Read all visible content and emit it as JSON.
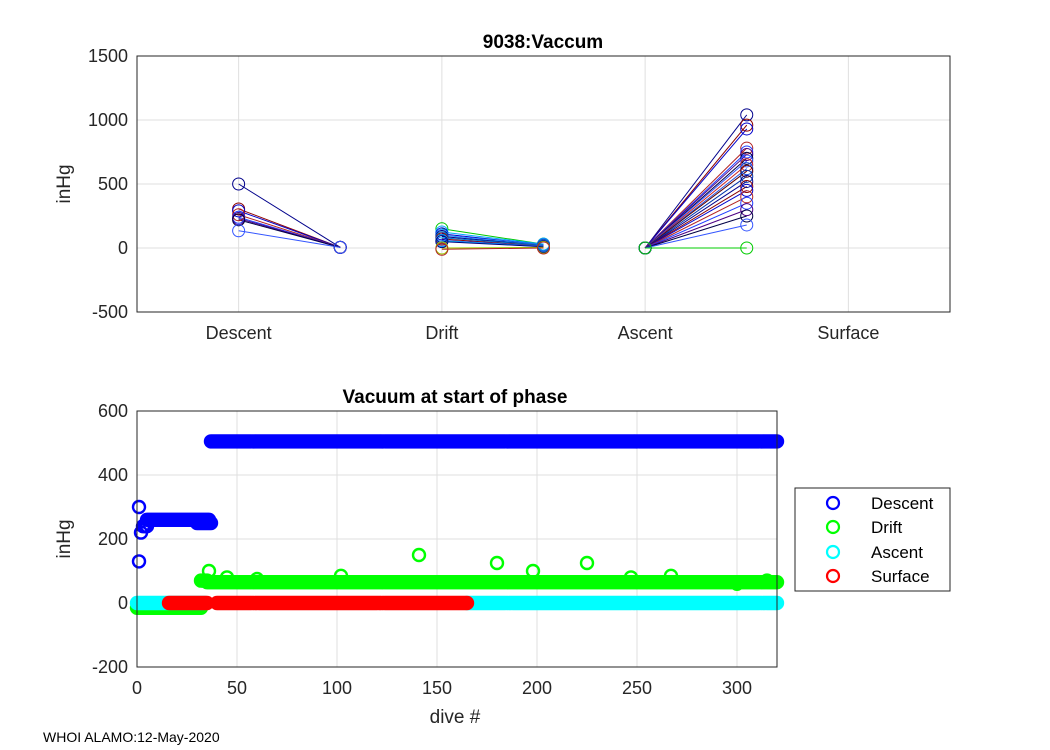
{
  "footer": "WHOI ALAMO:12-May-2020",
  "colors": {
    "descent": "#0000ff",
    "drift": "#00ff00",
    "ascent": "#00ffff",
    "surface": "#ff0000",
    "grid": "#dfdfdf",
    "axis": "#262626"
  },
  "chart_data": [
    {
      "type": "line",
      "title": "9038:Vaccum",
      "xlabel": "",
      "ylabel": "inHg",
      "ylim": [
        -500,
        1500
      ],
      "xlim": [
        -0.5,
        3.5
      ],
      "yticks": [
        "-500",
        "0",
        "500",
        "1000",
        "1500"
      ],
      "xticks": [
        {
          "x": 0,
          "label": "Descent"
        },
        {
          "x": 1,
          "label": "Drift"
        },
        {
          "x": 2,
          "label": "Ascent"
        },
        {
          "x": 3,
          "label": "Surface"
        }
      ],
      "grid": true,
      "phase_segments": [
        {
          "phase": "Descent",
          "x_start": 0,
          "x_end": 0.5,
          "start_values": [
            500,
            305,
            290,
            260,
            240,
            230,
            220,
            135
          ],
          "end_values": [
            5,
            5,
            5,
            5,
            5,
            5,
            5,
            5
          ]
        },
        {
          "phase": "Drift",
          "x_start": 1,
          "x_end": 1.5,
          "start_values": [
            150,
            125,
            110,
            100,
            90,
            80,
            70,
            60,
            55,
            50,
            0,
            -10
          ],
          "end_values": [
            30,
            30,
            25,
            25,
            20,
            20,
            15,
            15,
            10,
            10,
            5,
            0
          ]
        },
        {
          "phase": "Ascent",
          "x_start": 2,
          "x_end": 2.5,
          "start_values": [
            0,
            0,
            0,
            0,
            0,
            0,
            0,
            0,
            0,
            0,
            0,
            0,
            0,
            0,
            0,
            0,
            0,
            0,
            0,
            0
          ],
          "end_values": [
            1040,
            960,
            930,
            780,
            750,
            730,
            700,
            680,
            650,
            620,
            600,
            560,
            520,
            480,
            450,
            400,
            350,
            300,
            250,
            180
          ]
        },
        {
          "phase": "Ascent-flat",
          "x_start": 2,
          "x_end": 2.5,
          "start_values": [
            0
          ],
          "end_values": [
            0
          ]
        }
      ]
    },
    {
      "type": "scatter",
      "title": "Vacuum at start of phase",
      "xlabel": "dive #",
      "ylabel": "inHg",
      "xlim": [
        0,
        320
      ],
      "ylim": [
        -200,
        600
      ],
      "xticks": [
        "0",
        "50",
        "100",
        "150",
        "200",
        "250",
        "300"
      ],
      "yticks": [
        "-200",
        "0",
        "200",
        "400",
        "600"
      ],
      "grid": true,
      "legend_position": "outside-right",
      "series": [
        {
          "name": "Descent",
          "segments": [
            {
              "x_from": 1,
              "x_to": 1,
              "y": 300
            },
            {
              "x_from": 1,
              "x_to": 1,
              "y": 130
            },
            {
              "x_from": 2,
              "x_to": 2,
              "y": 220
            },
            {
              "x_from": 3,
              "x_to": 5,
              "y": 240
            },
            {
              "x_from": 5,
              "x_to": 36,
              "y": 260
            },
            {
              "x_from": 30,
              "x_to": 37,
              "y": 250
            },
            {
              "x_from": 37,
              "x_to": 320,
              "y": 505
            }
          ]
        },
        {
          "name": "Drift",
          "segments": [
            {
              "x_from": 0,
              "x_to": 32,
              "y": -15
            },
            {
              "x_from": 32,
              "x_to": 35,
              "y": 70
            },
            {
              "x_from": 35,
              "x_to": 320,
              "y": 65
            }
          ],
          "points": [
            {
              "x": 36,
              "y": 100
            },
            {
              "x": 45,
              "y": 80
            },
            {
              "x": 60,
              "y": 75
            },
            {
              "x": 102,
              "y": 85
            },
            {
              "x": 141,
              "y": 150
            },
            {
              "x": 180,
              "y": 125
            },
            {
              "x": 198,
              "y": 100
            },
            {
              "x": 225,
              "y": 125
            },
            {
              "x": 247,
              "y": 80
            },
            {
              "x": 267,
              "y": 85
            },
            {
              "x": 300,
              "y": 60
            },
            {
              "x": 315,
              "y": 70
            }
          ]
        },
        {
          "name": "Ascent",
          "segments": [
            {
              "x_from": 0,
              "x_to": 34,
              "y": 0
            },
            {
              "x_from": 165,
              "x_to": 320,
              "y": 0
            }
          ]
        },
        {
          "name": "Surface",
          "segments": [
            {
              "x_from": 16,
              "x_to": 20,
              "y": 0
            },
            {
              "x_from": 21,
              "x_to": 35,
              "y": 0
            },
            {
              "x_from": 40,
              "x_to": 165,
              "y": 0
            }
          ]
        }
      ]
    }
  ]
}
